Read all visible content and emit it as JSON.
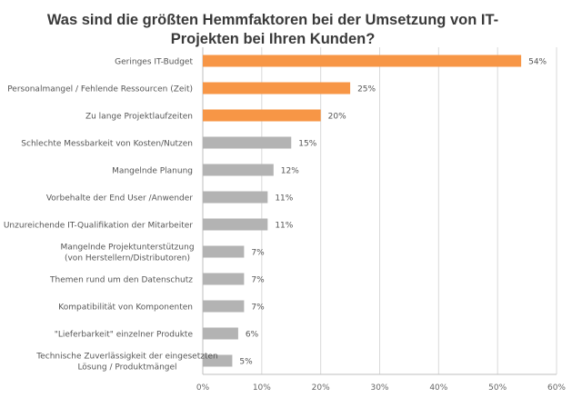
{
  "chart_data": {
    "type": "bar",
    "orientation": "horizontal",
    "title": "Was sind die größten Hemmfaktoren bei der Umsetzung von IT-Projekten bei Ihren Kunden?",
    "title_lines": [
      "Was sind die größten Hemmfaktoren bei der Umsetzung von IT-",
      "Projekten bei Ihren Kunden?"
    ],
    "categories": [
      "Geringes IT-Budget",
      "Personalmangel / Fehlende Ressourcen (Zeit)",
      "Zu lange Projektlaufzeiten",
      "Schlechte Messbarkeit von Kosten/Nutzen",
      "Mangelnde Planung",
      "Vorbehalte der End User /Anwender",
      "Unzureichende IT-Qualifikation der Mitarbeiter",
      "Mangelnde Projektunterstützung\n(von Herstellern/Distributoren)",
      "Themen rund um den Datenschutz",
      "Kompatibilität von Komponenten",
      "\"Lieferbarkeit\" einzelner Produkte",
      "Technische Zuverlässigkeit der eingesetzten\nLösung /  Produktmängel"
    ],
    "values": [
      54,
      25,
      20,
      15,
      12,
      11,
      11,
      7,
      7,
      7,
      6,
      5
    ],
    "data_labels": [
      "54%",
      "25%",
      "20%",
      "15%",
      "12%",
      "11%",
      "11%",
      "7%",
      "7%",
      "7%",
      "6%",
      "5%"
    ],
    "highlighted_count": 3,
    "xlim": [
      0,
      60
    ],
    "x_ticks": [
      "0%",
      "10%",
      "20%",
      "30%",
      "40%",
      "50%",
      "60%"
    ],
    "xlabel": "",
    "ylabel": "",
    "grid": "vertical",
    "colors": {
      "highlight": "#F79646",
      "default": "#B3B3B3",
      "grid": "#D9D9D9"
    }
  }
}
